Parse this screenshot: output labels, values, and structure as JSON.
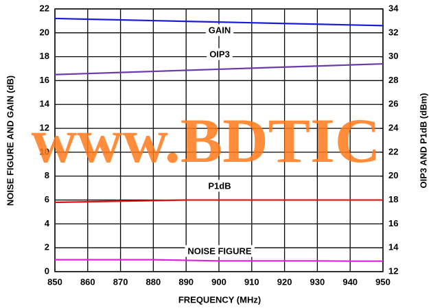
{
  "chart_data": {
    "type": "line",
    "x": [
      850,
      860,
      870,
      880,
      890,
      900,
      910,
      920,
      930,
      940,
      950
    ],
    "xlim": [
      850,
      950
    ],
    "xticks": [
      850,
      860,
      870,
      880,
      890,
      900,
      910,
      920,
      930,
      940,
      950
    ],
    "ylim": [
      0,
      22
    ],
    "yticks": [
      0,
      2,
      4,
      6,
      8,
      10,
      12,
      14,
      16,
      18,
      20,
      22
    ],
    "y2lim": [
      12,
      34
    ],
    "y2ticks": [
      12,
      14,
      16,
      18,
      20,
      22,
      24,
      26,
      28,
      30,
      32,
      34
    ],
    "xlabel": "FREQUENCY (MHz)",
    "ylabel": "NOISE FIGURE AND GAIN (dB)",
    "y2label": "OIP3 AND P1dB (dBm)",
    "watermark": "www.BDTIC",
    "grid": true,
    "series": [
      {
        "name": "GAIN",
        "color": "#1a1adc",
        "values": [
          21.2,
          21.14,
          21.08,
          21.02,
          20.96,
          20.9,
          20.84,
          20.78,
          20.72,
          20.66,
          20.6
        ]
      },
      {
        "name": "OIP3",
        "color": "#6a3aa8",
        "axis": "y2",
        "values": [
          28.5,
          28.59,
          28.68,
          28.77,
          28.86,
          28.95,
          29.04,
          29.13,
          29.22,
          29.31,
          29.4
        ]
      },
      {
        "name": "P1dB",
        "color": "#e01010",
        "axis": "y2",
        "values": [
          17.8,
          17.85,
          17.9,
          17.95,
          18,
          18,
          18,
          18,
          18,
          18,
          18
        ]
      },
      {
        "name": "NOISE FIGURE",
        "color": "#e020e0",
        "values": [
          1,
          1,
          1,
          1,
          0.95,
          0.9,
          0.9,
          0.9,
          0.9,
          0.88,
          0.88
        ]
      }
    ]
  }
}
